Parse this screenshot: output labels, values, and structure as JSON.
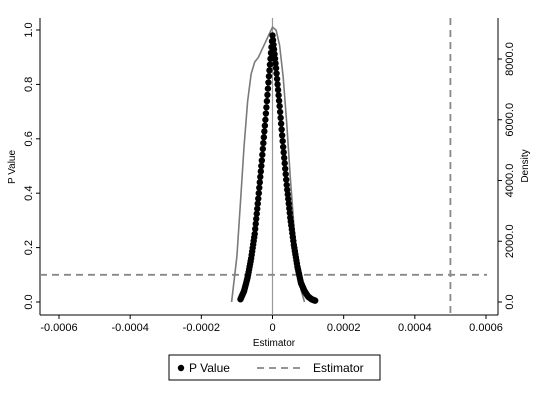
{
  "chart_data": {
    "type": "scatter",
    "xlabel": "Estimator",
    "ylabel": "P Value",
    "y2label": "Density",
    "xlim": [
      -0.0006,
      0.0006
    ],
    "ylim": [
      0,
      1
    ],
    "y2lim": [
      0,
      9000
    ],
    "x_ticks": [
      "-0.0006",
      "-0.0004",
      "-0.0002",
      "0",
      "0.0002",
      "0.0004",
      "0.0006"
    ],
    "y_ticks": [
      "0.0",
      "0.2",
      "0.4",
      "0.6",
      "0.8",
      "1.0"
    ],
    "y2_ticks": [
      "0.0",
      "2000.0",
      "4000.0",
      "6000.0",
      "8000.0"
    ],
    "grid": false,
    "legend_position": "bottom",
    "reference_lines": {
      "horizontal_p": 0.1,
      "vertical_estimator": 0.0005,
      "vertical_zero": 0
    },
    "series": [
      {
        "name": "P Value",
        "kind": "points",
        "color": "#000000",
        "x": [
          -9e-05,
          -8e-05,
          -7e-05,
          -6e-05,
          -5e-05,
          -4e-05,
          -3e-05,
          -2e-05,
          -1e-05,
          0.0,
          1e-05,
          2e-05,
          3e-05,
          4e-05,
          5e-05,
          6e-05,
          7e-05,
          8e-05,
          9e-05,
          0.0001,
          0.00011,
          0.00012
        ],
        "y": [
          0.01,
          0.04,
          0.09,
          0.16,
          0.25,
          0.38,
          0.52,
          0.67,
          0.83,
          0.98,
          0.86,
          0.72,
          0.57,
          0.43,
          0.31,
          0.21,
          0.13,
          0.07,
          0.04,
          0.02,
          0.01,
          0.005
        ]
      },
      {
        "name": "Estimator",
        "kind": "dashed-line",
        "color": "#888888",
        "x": [
          0.0005,
          0.0005
        ],
        "y": [
          0,
          1
        ]
      },
      {
        "kind": "density-line",
        "color": "#7a7a7a",
        "axis": "y2",
        "x": [
          -0.000115,
          -0.0001,
          -9e-05,
          -8e-05,
          -7e-05,
          -6e-05,
          -5e-05,
          -4e-05,
          -3e-05,
          -2e-05,
          -1e-05,
          0.0,
          1e-05,
          2e-05,
          3e-05,
          4e-05,
          5e-05,
          6e-05,
          7e-05,
          8e-05,
          9e-05
        ],
        "y": [
          0,
          1500,
          3300,
          5100,
          6600,
          7500,
          7900,
          8050,
          8300,
          8550,
          8800,
          9050,
          8950,
          8450,
          7400,
          5900,
          4100,
          2500,
          1200,
          400,
          0
        ]
      }
    ]
  },
  "legend": {
    "items": [
      {
        "label": "P Value"
      },
      {
        "label": "Estimator"
      }
    ]
  }
}
